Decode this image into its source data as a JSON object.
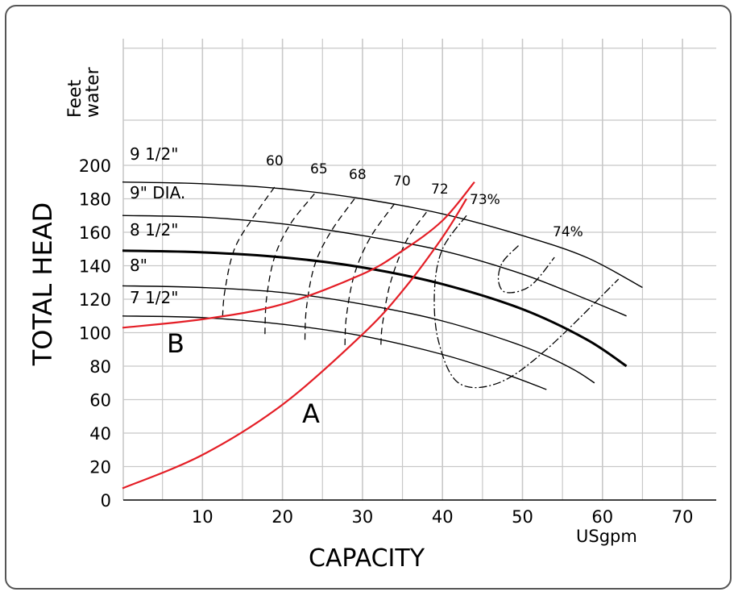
{
  "chart_data": {
    "type": "line",
    "title": "",
    "xlabel": "CAPACITY",
    "xunit": "USgpm",
    "ylabel": "TOTAL HEAD",
    "yunit": "Feet water",
    "xlim": [
      0,
      75
    ],
    "ylim": [
      0,
      220
    ],
    "xticks": [
      10,
      20,
      30,
      40,
      50,
      60,
      70
    ],
    "yticks": [
      0,
      20,
      40,
      60,
      80,
      100,
      120,
      140,
      160,
      180,
      200
    ],
    "grid": true,
    "colors": {
      "impeller": "#000000",
      "system": "#e41e26",
      "efficiency": "#000000",
      "grid": "#c8c8c8"
    },
    "impeller_curves": [
      {
        "name": "9 1/2\"",
        "x": [
          0,
          10,
          20,
          30,
          40,
          50,
          58,
          65
        ],
        "y": [
          190,
          189,
          186,
          180,
          171,
          158,
          145,
          127
        ]
      },
      {
        "name": "9\" DIA.",
        "x": [
          0,
          10,
          20,
          30,
          40,
          50,
          58,
          63
        ],
        "y": [
          170,
          169,
          165,
          158,
          149,
          135,
          120,
          110
        ]
      },
      {
        "name": "8 1/2\"",
        "x": [
          0,
          10,
          20,
          30,
          40,
          50,
          58,
          63
        ],
        "y": [
          149,
          148,
          145,
          139,
          129,
          114,
          96,
          80
        ]
      },
      {
        "name": "8\"",
        "x": [
          0,
          10,
          20,
          30,
          40,
          50,
          56,
          59
        ],
        "y": [
          128,
          127,
          124,
          117,
          107,
          92,
          79,
          70
        ]
      },
      {
        "name": "7 1/2\"",
        "x": [
          0,
          10,
          20,
          30,
          40,
          48,
          53
        ],
        "y": [
          110,
          109,
          105,
          98,
          87,
          75,
          66
        ]
      }
    ],
    "system_curves": [
      {
        "name": "A",
        "x": [
          0,
          10,
          20,
          30,
          35,
          40,
          43
        ],
        "y": [
          7,
          27,
          57,
          99,
          125,
          157,
          180
        ]
      },
      {
        "name": "B",
        "x": [
          0,
          10,
          20,
          30,
          35,
          40,
          44
        ],
        "y": [
          103,
          108,
          117,
          135,
          149,
          167,
          190
        ]
      }
    ],
    "efficiency_curves": [
      {
        "name": "60",
        "x": [
          19,
          16.5,
          14,
          12.8,
          12.5
        ],
        "y": [
          187,
          170,
          150,
          125,
          108
        ]
      },
      {
        "name": "65",
        "x": [
          24,
          21,
          19,
          18,
          17.8
        ],
        "y": [
          183,
          165,
          145,
          120,
          98
        ]
      },
      {
        "name": "68",
        "x": [
          29,
          26,
          24,
          23,
          22.8
        ],
        "y": [
          180,
          160,
          140,
          115,
          94
        ]
      },
      {
        "name": "70",
        "x": [
          34,
          31,
          29,
          28,
          27.8
        ],
        "y": [
          177,
          157,
          135,
          110,
          92
        ]
      },
      {
        "name": "72",
        "x": [
          38,
          35.5,
          33.5,
          32.5,
          32.3
        ],
        "y": [
          172,
          155,
          130,
          105,
          92
        ]
      },
      {
        "name": "73%",
        "x": [
          43,
          40,
          39,
          39.5,
          42,
          47,
          53,
          62
        ],
        "y": [
          170,
          150,
          125,
          95,
          70,
          70,
          90,
          132
        ]
      },
      {
        "name": "74%",
        "x": [
          49.5,
          47.5,
          47,
          48,
          51,
          54
        ],
        "y": [
          152,
          142,
          131,
          124,
          128,
          145
        ]
      }
    ]
  }
}
